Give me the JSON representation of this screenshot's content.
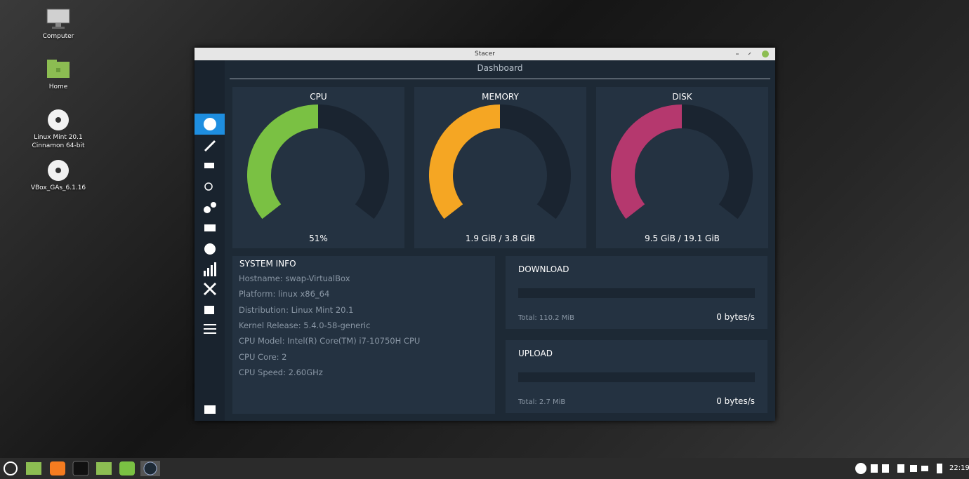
{
  "desktop_icons": [
    "Computer",
    "Home",
    "Linux Mint 20.1 Cinnamon 64-bit",
    "VBox_GAs_6.1.16"
  ],
  "window": {
    "title": "Stacer",
    "page_title": "Dashboard",
    "gauges": [
      {
        "label": "CPU",
        "value_text": "51%"
      },
      {
        "label": "MEMORY",
        "value_text": "1.9 GiB / 3.8 GiB"
      },
      {
        "label": "DISK",
        "value_text": "9.5 GiB / 19.1 GiB"
      }
    ],
    "system_info": {
      "title": "SYSTEM INFO",
      "items": [
        "Hostname: swap-VirtualBox",
        "Platform: linux x86_64",
        "Distribution: Linux Mint 20.1",
        "Kernel Release: 5.4.0-58-generic",
        "CPU Model: Intel(R) Core(TM) i7-10750H CPU",
        "CPU Core: 2",
        "CPU Speed: 2.60GHz"
      ]
    },
    "network": [
      {
        "title": "DOWNLOAD",
        "total": "Total: 110.2 MiB",
        "rate": "0 bytes/s"
      },
      {
        "title": "UPLOAD",
        "total": "Total: 2.7 MiB",
        "rate": "0 bytes/s"
      }
    ]
  },
  "taskbar": {
    "clock": "22:19"
  }
}
